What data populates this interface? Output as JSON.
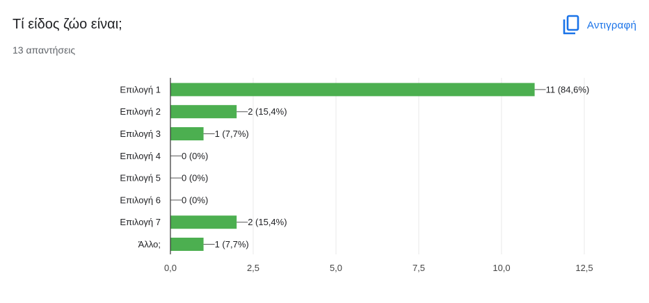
{
  "header": {
    "title": "Τί είδος ζώο είναι;",
    "responses": "13 απαντήσεις",
    "copy_label": "Αντιγραφή"
  },
  "colors": {
    "bar": "#4caf50",
    "accent": "#1a73e8",
    "grid": "#e8e8e8",
    "axis": "#333333"
  },
  "icons": {
    "copy": "copy-icon"
  },
  "chart_data": {
    "type": "bar",
    "orientation": "horizontal",
    "categories": [
      "Επιλογή 1",
      "Επιλογή 2",
      "Επιλογή 3",
      "Επιλογή 4",
      "Επιλογή 5",
      "Επιλογή 6",
      "Επιλογή 7",
      "Άλλο;"
    ],
    "values": [
      11,
      2,
      1,
      0,
      0,
      0,
      2,
      1
    ],
    "data_labels": [
      "11 (84,6%)",
      "2 (15,4%)",
      "1 (7,7%)",
      "0 (0%)",
      "0 (0%)",
      "0 (0%)",
      "2 (15,4%)",
      "1 (7,7%)"
    ],
    "xlim": [
      0,
      12.5
    ],
    "ticks": [
      0,
      2.5,
      5,
      7.5,
      10,
      12.5
    ],
    "tick_labels": [
      "0,0",
      "2,5",
      "5,0",
      "7,5",
      "10,0",
      "12,5"
    ],
    "grid": true,
    "legend": "none"
  }
}
